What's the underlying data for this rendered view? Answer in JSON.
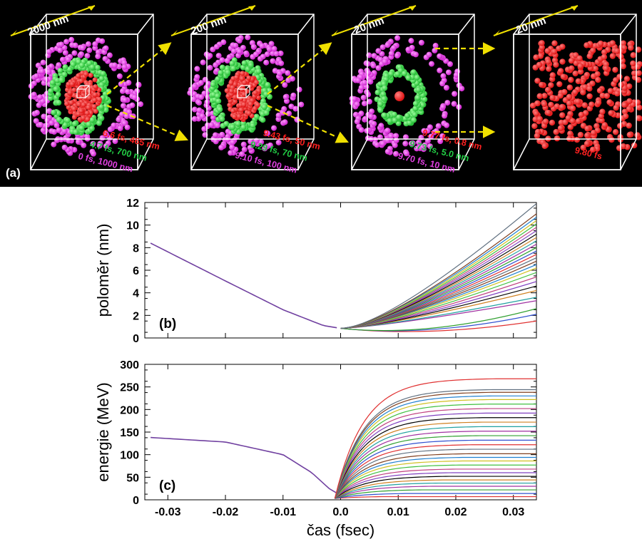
{
  "panel_a": {
    "label": "(a)",
    "boxes": [
      {
        "scale": "2000 nm",
        "annotations": [
          {
            "text": "6.6 fs, 465 nm",
            "color": "#ff2020"
          },
          {
            "text": "4.7 fs, 700 nm",
            "color": "#22cc44"
          },
          {
            "text": "0 fs, 1000 nm",
            "color": "#e040e0"
          }
        ]
      },
      {
        "scale": "200 nm",
        "annotations": [
          {
            "text": "9.43 fs, 50 nm",
            "color": "#ff2020"
          },
          {
            "text": "9.29 fs, 70 nm",
            "color": "#22cc44"
          },
          {
            "text": "9.10 fs, 100 nm",
            "color": "#e040e0"
          }
        ]
      },
      {
        "scale": "20 nm",
        "annotations": [
          {
            "text": "9.77 fs, 0.8 nm",
            "color": "#ff2020"
          },
          {
            "text": "9.73 fs, 5.0 nm",
            "color": "#22cc44"
          },
          {
            "text": "9.70 fs, 10 nm",
            "color": "#e040e0"
          }
        ]
      },
      {
        "scale": "20 nm",
        "annotations": [
          {
            "text": "9.80 fs",
            "color": "#ff2020"
          }
        ]
      }
    ],
    "colors": {
      "shell_outer": "#cc22cc",
      "shell_mid": "#22bb33",
      "core": "#dd1111",
      "arrow": "#f0e000",
      "box": "#ffffff"
    }
  },
  "chart_data": [
    {
      "type": "line",
      "panel_label": "(b)",
      "ylabel": "poloměr (nm)",
      "xlim": [
        -0.034,
        0.034
      ],
      "ylim": [
        0,
        12
      ],
      "yticks": [
        "0",
        "2",
        "4",
        "6",
        "8",
        "10",
        "12"
      ],
      "collapse_curve": {
        "x": [
          -0.033,
          -0.02,
          -0.01,
          -0.003,
          0.0
        ],
        "y": [
          8.4,
          5.05,
          2.5,
          1.1,
          0.85
        ]
      },
      "expansion_end_values": [
        1.5,
        2.1,
        2.6,
        3.3,
        3.6,
        4.2,
        4.6,
        5.0,
        5.4,
        5.8,
        6.2,
        6.5,
        6.8,
        7.1,
        7.4,
        7.7,
        8.0,
        8.3,
        8.6,
        8.9,
        9.2,
        9.5,
        9.8,
        10.1,
        10.4,
        10.7,
        11.0,
        11.9
      ],
      "expansion_start": {
        "x": 0.0,
        "y": 0.85
      },
      "expansion_end_x": 0.034
    },
    {
      "type": "line",
      "panel_label": "(c)",
      "xlabel": "čas (fsec)",
      "ylabel": "energie (MeV)",
      "xlim": [
        -0.034,
        0.034
      ],
      "ylim": [
        0,
        300
      ],
      "xticks": [
        "-0.03",
        "-0.02",
        "-0.01",
        "0.0",
        "0.01",
        "0.02",
        "0.03"
      ],
      "yticks": [
        "0",
        "50",
        "100",
        "150",
        "200",
        "250",
        "300"
      ],
      "decline_curve": {
        "x": [
          -0.033,
          -0.02,
          -0.01,
          -0.005,
          -0.002,
          0.0
        ],
        "y": [
          138,
          128,
          100,
          60,
          25,
          10
        ]
      },
      "saturation_values": [
        5,
        12,
        20,
        28,
        35,
        42,
        50,
        58,
        66,
        75,
        84,
        92,
        100,
        110,
        120,
        130,
        140,
        150,
        160,
        170,
        180,
        190,
        200,
        210,
        220,
        228,
        236,
        242,
        266
      ]
    }
  ],
  "series_colors": [
    "#e03030",
    "#3050d0",
    "#30a030",
    "#a030a0",
    "#20a0a0",
    "#d08020",
    "#000000",
    "#8040c0",
    "#c04080",
    "#40c040",
    "#d0c020",
    "#2080d0",
    "#804020",
    "#607080"
  ]
}
